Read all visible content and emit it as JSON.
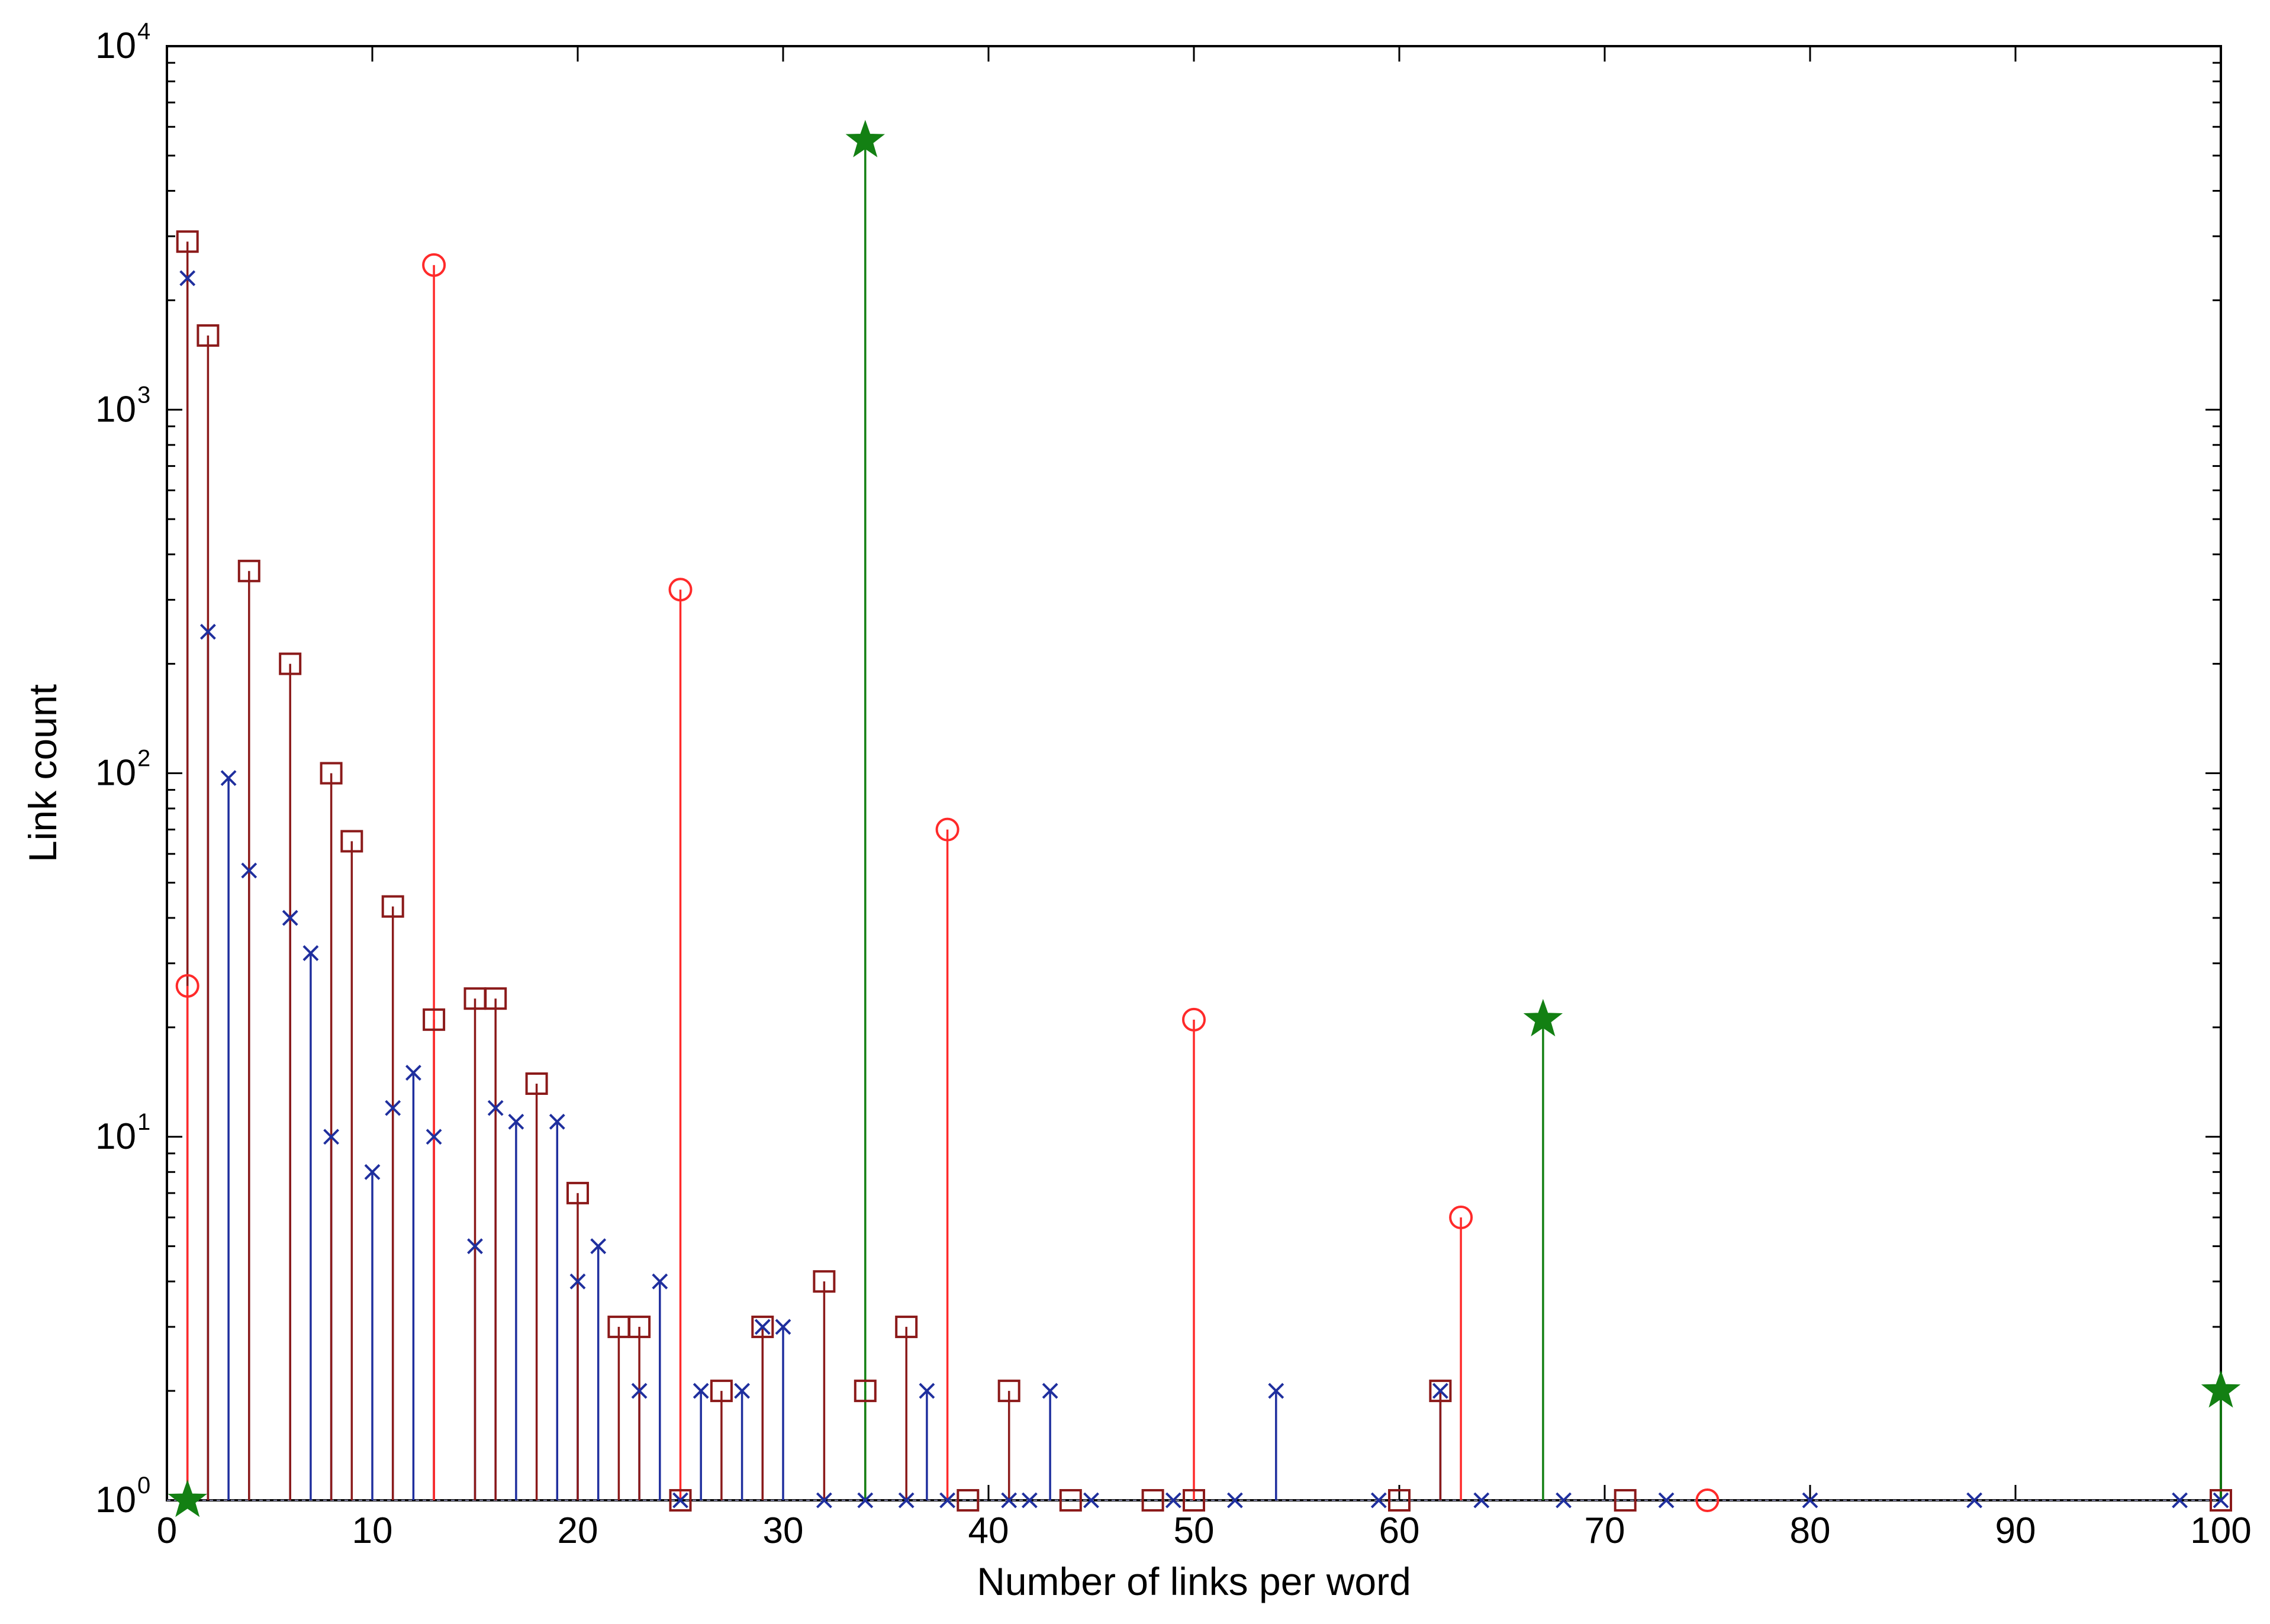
{
  "chart_data": {
    "type": "scatter",
    "subtype": "stem",
    "title": "",
    "xlabel": "Number of links per word",
    "ylabel": "Link count",
    "xlim": [
      0,
      100
    ],
    "ylim": [
      1,
      10000
    ],
    "yscale": "log",
    "grid": false,
    "legend": "none",
    "x_ticks": [
      0,
      10,
      20,
      30,
      40,
      50,
      60,
      70,
      80,
      90,
      100
    ],
    "y_ticks": [
      {
        "base": "10",
        "exp": "0",
        "value": 1
      },
      {
        "base": "10",
        "exp": "1",
        "value": 10
      },
      {
        "base": "10",
        "exp": "2",
        "value": 100
      },
      {
        "base": "10",
        "exp": "3",
        "value": 1000
      },
      {
        "base": "10",
        "exp": "4",
        "value": 10000
      }
    ],
    "series": [
      {
        "marker": "x",
        "color": "#1f2f9e",
        "points": [
          [
            1,
            2300
          ],
          [
            2,
            245
          ],
          [
            3,
            97
          ],
          [
            4,
            54
          ],
          [
            6,
            40
          ],
          [
            7,
            32
          ],
          [
            8,
            10
          ],
          [
            10,
            8
          ],
          [
            11,
            12
          ],
          [
            12,
            15
          ],
          [
            13,
            10
          ],
          [
            15,
            5
          ],
          [
            16,
            12
          ],
          [
            17,
            11
          ],
          [
            19,
            11
          ],
          [
            20,
            4
          ],
          [
            21,
            5
          ],
          [
            23,
            2
          ],
          [
            24,
            4
          ],
          [
            25,
            1
          ],
          [
            26,
            2
          ],
          [
            28,
            2
          ],
          [
            29,
            3
          ],
          [
            30,
            3
          ],
          [
            32,
            1
          ],
          [
            34,
            1
          ],
          [
            36,
            1
          ],
          [
            37,
            2
          ],
          [
            38,
            1
          ],
          [
            41,
            1
          ],
          [
            42,
            1
          ],
          [
            43,
            2
          ],
          [
            45,
            1
          ],
          [
            49,
            1
          ],
          [
            52,
            1
          ],
          [
            54,
            2
          ],
          [
            59,
            1
          ],
          [
            62,
            2
          ],
          [
            64,
            1
          ],
          [
            68,
            1
          ],
          [
            73,
            1
          ],
          [
            80,
            1
          ],
          [
            88,
            1
          ],
          [
            98,
            1
          ],
          [
            100,
            1
          ]
        ]
      },
      {
        "marker": "square",
        "color": "#8b1a1a",
        "points": [
          [
            1,
            2900
          ],
          [
            2,
            1600
          ],
          [
            4,
            360
          ],
          [
            6,
            200
          ],
          [
            8,
            100
          ],
          [
            9,
            65
          ],
          [
            11,
            43
          ],
          [
            13,
            21
          ],
          [
            15,
            24
          ],
          [
            16,
            24
          ],
          [
            18,
            14
          ],
          [
            20,
            7
          ],
          [
            22,
            3
          ],
          [
            23,
            3
          ],
          [
            25,
            1
          ],
          [
            27,
            2
          ],
          [
            29,
            3
          ],
          [
            32,
            4
          ],
          [
            34,
            2
          ],
          [
            36,
            3
          ],
          [
            39,
            1
          ],
          [
            41,
            2
          ],
          [
            44,
            1
          ],
          [
            48,
            1
          ],
          [
            50,
            1
          ],
          [
            60,
            1
          ],
          [
            62,
            2
          ],
          [
            71,
            1
          ],
          [
            100,
            1
          ]
        ]
      },
      {
        "marker": "circle",
        "color": "#ff2a2a",
        "points": [
          [
            1,
            26
          ],
          [
            13,
            2500
          ],
          [
            25,
            320
          ],
          [
            38,
            70
          ],
          [
            50,
            21
          ],
          [
            63,
            6
          ],
          [
            75,
            1
          ]
        ]
      },
      {
        "marker": "star",
        "color": "#138013",
        "points": [
          [
            1,
            1
          ],
          [
            34,
            5500
          ],
          [
            67,
            21
          ],
          [
            100,
            2
          ]
        ]
      }
    ]
  }
}
